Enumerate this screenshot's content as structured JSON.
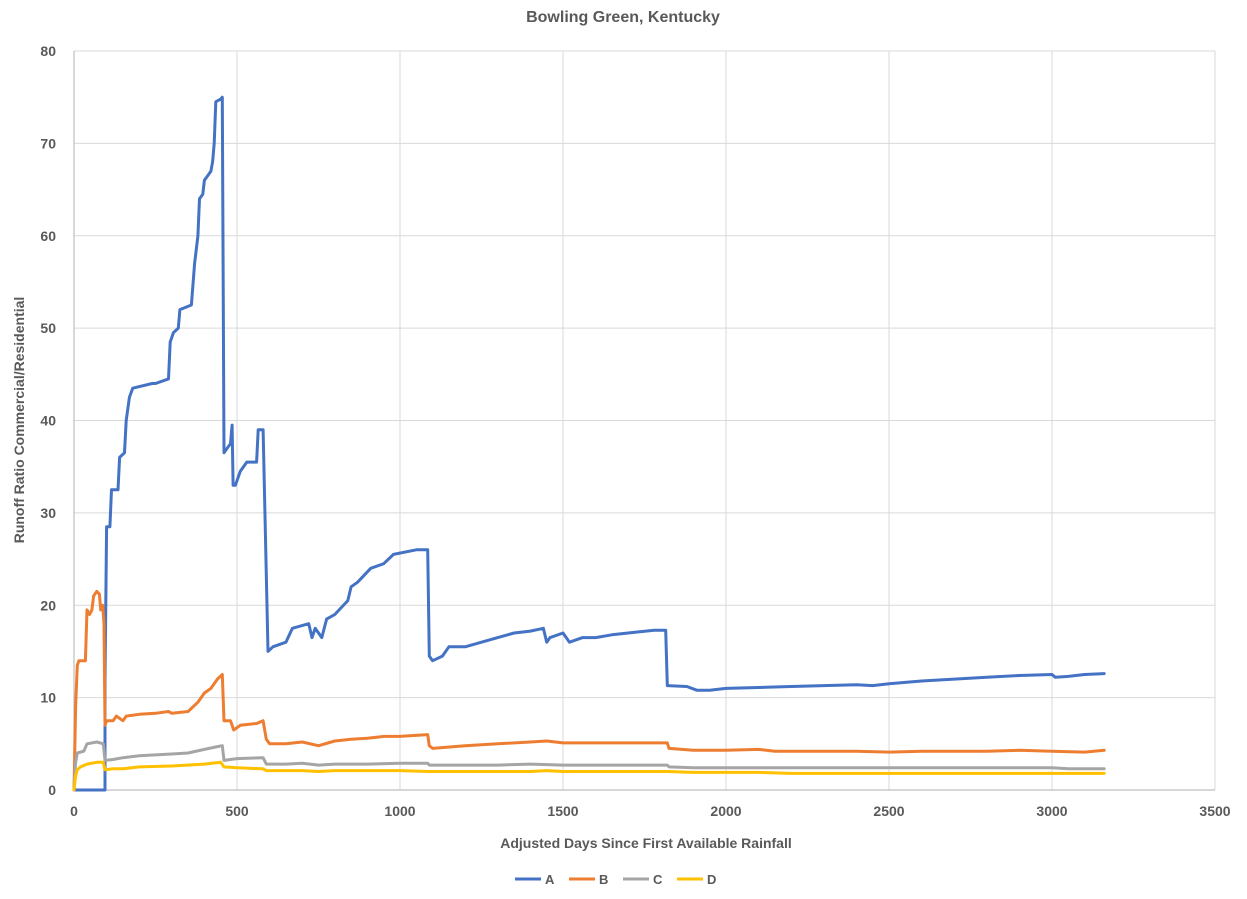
{
  "chart_data": {
    "type": "line",
    "title": "Bowling Green, Kentucky",
    "xlabel": "Adjusted Days Since First Available Rainfall",
    "ylabel": "Runoff Ratio Commercial/Residential",
    "xlim": [
      0,
      3500
    ],
    "ylim": [
      0,
      80
    ],
    "x_ticks": [
      0,
      500,
      1000,
      1500,
      2000,
      2500,
      3000,
      3500
    ],
    "y_ticks": [
      0,
      10,
      20,
      30,
      40,
      50,
      60,
      70,
      80
    ],
    "grid": true,
    "legend_position": "bottom",
    "series": [
      {
        "name": "A",
        "color": "#4472C4",
        "points": [
          [
            0,
            0
          ],
          [
            95,
            0
          ],
          [
            95,
            12
          ],
          [
            100,
            28.5
          ],
          [
            110,
            28.5
          ],
          [
            115,
            32.5
          ],
          [
            135,
            32.5
          ],
          [
            140,
            36
          ],
          [
            155,
            36.5
          ],
          [
            160,
            40
          ],
          [
            170,
            42.5
          ],
          [
            180,
            43.5
          ],
          [
            240,
            44
          ],
          [
            250,
            44
          ],
          [
            290,
            44.5
          ],
          [
            295,
            48.5
          ],
          [
            305,
            49.5
          ],
          [
            320,
            50
          ],
          [
            325,
            52
          ],
          [
            360,
            52.5
          ],
          [
            370,
            57
          ],
          [
            380,
            60
          ],
          [
            385,
            64
          ],
          [
            395,
            64.5
          ],
          [
            400,
            66
          ],
          [
            410,
            66.5
          ],
          [
            420,
            67
          ],
          [
            425,
            68
          ],
          [
            430,
            70
          ],
          [
            435,
            74.5
          ],
          [
            450,
            74.8
          ],
          [
            455,
            75
          ],
          [
            460,
            36.5
          ],
          [
            470,
            37
          ],
          [
            480,
            37.5
          ],
          [
            485,
            39.5
          ],
          [
            488,
            33
          ],
          [
            495,
            33
          ],
          [
            510,
            34.5
          ],
          [
            530,
            35.5
          ],
          [
            560,
            35.5
          ],
          [
            565,
            39
          ],
          [
            580,
            39
          ],
          [
            595,
            15
          ],
          [
            610,
            15.5
          ],
          [
            650,
            16
          ],
          [
            670,
            17.5
          ],
          [
            720,
            18
          ],
          [
            730,
            16.5
          ],
          [
            740,
            17.5
          ],
          [
            760,
            16.5
          ],
          [
            775,
            18.5
          ],
          [
            800,
            19
          ],
          [
            840,
            20.5
          ],
          [
            850,
            22
          ],
          [
            870,
            22.5
          ],
          [
            910,
            24
          ],
          [
            950,
            24.5
          ],
          [
            980,
            25.5
          ],
          [
            1050,
            26
          ],
          [
            1085,
            26
          ],
          [
            1090,
            14.5
          ],
          [
            1100,
            14
          ],
          [
            1130,
            14.5
          ],
          [
            1150,
            15.5
          ],
          [
            1200,
            15.5
          ],
          [
            1250,
            16
          ],
          [
            1300,
            16.5
          ],
          [
            1350,
            17
          ],
          [
            1400,
            17.2
          ],
          [
            1440,
            17.5
          ],
          [
            1450,
            16
          ],
          [
            1460,
            16.5
          ],
          [
            1500,
            17
          ],
          [
            1520,
            16
          ],
          [
            1560,
            16.5
          ],
          [
            1600,
            16.5
          ],
          [
            1650,
            16.8
          ],
          [
            1700,
            17
          ],
          [
            1780,
            17.3
          ],
          [
            1815,
            17.3
          ],
          [
            1820,
            11.3
          ],
          [
            1880,
            11.2
          ],
          [
            1910,
            10.8
          ],
          [
            1950,
            10.8
          ],
          [
            2000,
            11
          ],
          [
            2100,
            11.1
          ],
          [
            2200,
            11.2
          ],
          [
            2300,
            11.3
          ],
          [
            2400,
            11.4
          ],
          [
            2450,
            11.3
          ],
          [
            2500,
            11.5
          ],
          [
            2600,
            11.8
          ],
          [
            2700,
            12.0
          ],
          [
            2800,
            12.2
          ],
          [
            2900,
            12.4
          ],
          [
            3000,
            12.5
          ],
          [
            3010,
            12.2
          ],
          [
            3050,
            12.3
          ],
          [
            3100,
            12.5
          ],
          [
            3160,
            12.6
          ]
        ]
      },
      {
        "name": "B",
        "color": "#ED7D31",
        "points": [
          [
            0,
            0
          ],
          [
            5,
            9
          ],
          [
            10,
            13.5
          ],
          [
            15,
            14
          ],
          [
            35,
            14
          ],
          [
            40,
            19.5
          ],
          [
            48,
            19
          ],
          [
            55,
            19.5
          ],
          [
            60,
            21
          ],
          [
            70,
            21.5
          ],
          [
            78,
            21.2
          ],
          [
            82,
            19.5
          ],
          [
            88,
            20
          ],
          [
            92,
            18
          ],
          [
            95,
            7
          ],
          [
            100,
            7.5
          ],
          [
            120,
            7.5
          ],
          [
            130,
            8
          ],
          [
            150,
            7.5
          ],
          [
            160,
            8
          ],
          [
            200,
            8.2
          ],
          [
            250,
            8.3
          ],
          [
            290,
            8.5
          ],
          [
            300,
            8.3
          ],
          [
            350,
            8.5
          ],
          [
            380,
            9.5
          ],
          [
            400,
            10.5
          ],
          [
            420,
            11
          ],
          [
            440,
            12
          ],
          [
            455,
            12.5
          ],
          [
            460,
            7.5
          ],
          [
            480,
            7.5
          ],
          [
            490,
            6.5
          ],
          [
            510,
            7
          ],
          [
            560,
            7.2
          ],
          [
            580,
            7.5
          ],
          [
            590,
            5.5
          ],
          [
            600,
            5
          ],
          [
            650,
            5
          ],
          [
            700,
            5.2
          ],
          [
            750,
            4.8
          ],
          [
            800,
            5.3
          ],
          [
            850,
            5.5
          ],
          [
            900,
            5.6
          ],
          [
            950,
            5.8
          ],
          [
            1000,
            5.8
          ],
          [
            1085,
            6
          ],
          [
            1090,
            4.8
          ],
          [
            1100,
            4.5
          ],
          [
            1200,
            4.8
          ],
          [
            1300,
            5
          ],
          [
            1400,
            5.2
          ],
          [
            1450,
            5.3
          ],
          [
            1500,
            5.1
          ],
          [
            1600,
            5.1
          ],
          [
            1700,
            5.1
          ],
          [
            1820,
            5.1
          ],
          [
            1825,
            4.5
          ],
          [
            1900,
            4.3
          ],
          [
            2000,
            4.3
          ],
          [
            2100,
            4.4
          ],
          [
            2150,
            4.2
          ],
          [
            2300,
            4.2
          ],
          [
            2400,
            4.2
          ],
          [
            2500,
            4.1
          ],
          [
            2600,
            4.2
          ],
          [
            2700,
            4.2
          ],
          [
            2800,
            4.2
          ],
          [
            2900,
            4.3
          ],
          [
            3000,
            4.2
          ],
          [
            3100,
            4.1
          ],
          [
            3160,
            4.3
          ]
        ]
      },
      {
        "name": "C",
        "color": "#A5A5A5",
        "points": [
          [
            0,
            0
          ],
          [
            5,
            3
          ],
          [
            10,
            4
          ],
          [
            30,
            4.2
          ],
          [
            40,
            5
          ],
          [
            70,
            5.2
          ],
          [
            90,
            5
          ],
          [
            95,
            3.2
          ],
          [
            120,
            3.3
          ],
          [
            150,
            3.5
          ],
          [
            200,
            3.7
          ],
          [
            250,
            3.8
          ],
          [
            300,
            3.9
          ],
          [
            350,
            4
          ],
          [
            400,
            4.4
          ],
          [
            440,
            4.7
          ],
          [
            455,
            4.8
          ],
          [
            460,
            3.2
          ],
          [
            500,
            3.4
          ],
          [
            580,
            3.5
          ],
          [
            590,
            2.8
          ],
          [
            650,
            2.8
          ],
          [
            700,
            2.9
          ],
          [
            750,
            2.7
          ],
          [
            800,
            2.8
          ],
          [
            900,
            2.8
          ],
          [
            1000,
            2.9
          ],
          [
            1085,
            2.9
          ],
          [
            1090,
            2.7
          ],
          [
            1200,
            2.7
          ],
          [
            1300,
            2.7
          ],
          [
            1400,
            2.8
          ],
          [
            1500,
            2.7
          ],
          [
            1600,
            2.7
          ],
          [
            1820,
            2.7
          ],
          [
            1825,
            2.5
          ],
          [
            1900,
            2.4
          ],
          [
            2000,
            2.4
          ],
          [
            2100,
            2.4
          ],
          [
            2200,
            2.4
          ],
          [
            2300,
            2.4
          ],
          [
            2500,
            2.4
          ],
          [
            2700,
            2.4
          ],
          [
            2900,
            2.4
          ],
          [
            3000,
            2.4
          ],
          [
            3050,
            2.3
          ],
          [
            3160,
            2.3
          ]
        ]
      },
      {
        "name": "D",
        "color": "#FFC000",
        "points": [
          [
            0,
            0
          ],
          [
            5,
            1.5
          ],
          [
            10,
            2.2
          ],
          [
            20,
            2.5
          ],
          [
            40,
            2.8
          ],
          [
            70,
            3
          ],
          [
            90,
            3
          ],
          [
            95,
            2.2
          ],
          [
            120,
            2.3
          ],
          [
            150,
            2.3
          ],
          [
            200,
            2.5
          ],
          [
            300,
            2.6
          ],
          [
            400,
            2.8
          ],
          [
            450,
            3
          ],
          [
            460,
            2.5
          ],
          [
            500,
            2.4
          ],
          [
            580,
            2.3
          ],
          [
            590,
            2.1
          ],
          [
            700,
            2.1
          ],
          [
            750,
            2.0
          ],
          [
            800,
            2.1
          ],
          [
            900,
            2.1
          ],
          [
            1000,
            2.1
          ],
          [
            1090,
            2.0
          ],
          [
            1200,
            2.0
          ],
          [
            1400,
            2.0
          ],
          [
            1450,
            2.1
          ],
          [
            1500,
            2.0
          ],
          [
            1600,
            2.0
          ],
          [
            1820,
            2.0
          ],
          [
            1900,
            1.9
          ],
          [
            2000,
            1.9
          ],
          [
            2100,
            1.9
          ],
          [
            2200,
            1.8
          ],
          [
            2400,
            1.8
          ],
          [
            2600,
            1.8
          ],
          [
            2800,
            1.8
          ],
          [
            3000,
            1.8
          ],
          [
            3160,
            1.8
          ]
        ]
      }
    ]
  }
}
